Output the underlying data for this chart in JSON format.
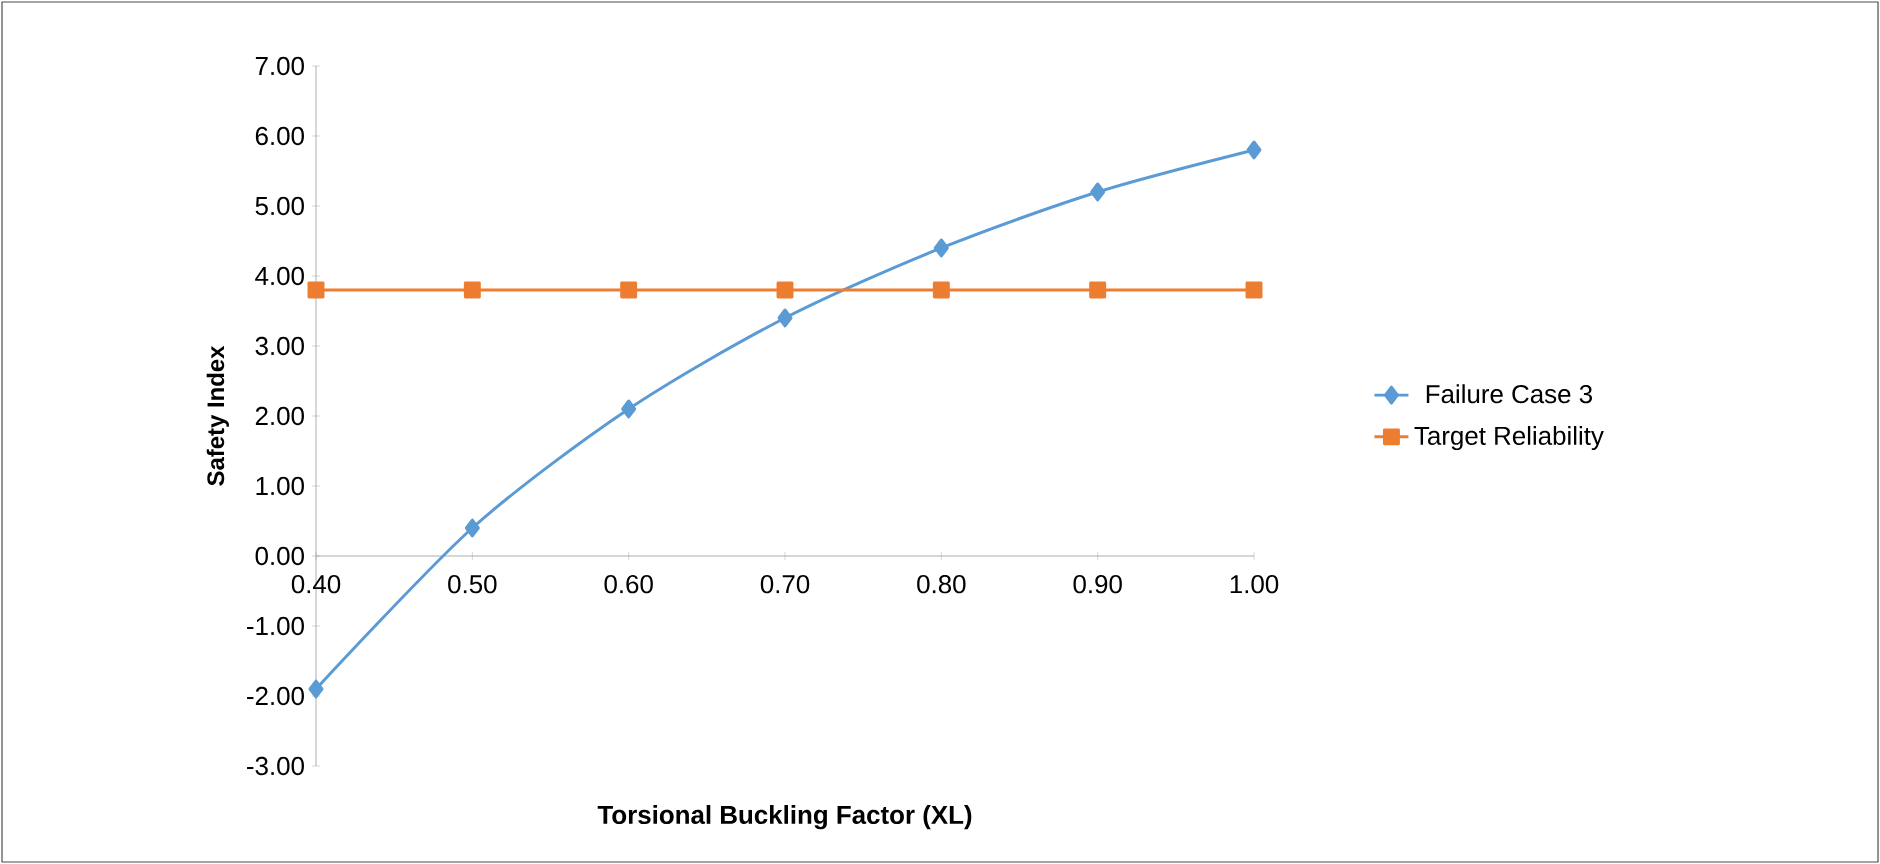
{
  "chart_data": {
    "type": "line",
    "xlabel": "Torsional  Buckling Factor (XL)",
    "ylabel": "Safety Index",
    "x": [
      0.4,
      0.5,
      0.6,
      0.7,
      0.8,
      0.9,
      1.0
    ],
    "series": [
      {
        "name": "Failure Case 3",
        "color": "#5b9bd5",
        "marker": "diamond",
        "values": [
          -1.9,
          0.4,
          2.1,
          3.4,
          4.4,
          5.2,
          5.8
        ]
      },
      {
        "name": "Target Reliability",
        "color": "#ed7d31",
        "marker": "square",
        "values": [
          3.8,
          3.8,
          3.8,
          3.8,
          3.8,
          3.8,
          3.8
        ]
      }
    ],
    "xlim": [
      0.4,
      1.0
    ],
    "ylim": [
      -3,
      7
    ],
    "xticks": [
      {
        "value": 0.4,
        "label": "0.40"
      },
      {
        "value": 0.5,
        "label": "0.50"
      },
      {
        "value": 0.6,
        "label": "0.60"
      },
      {
        "value": 0.7,
        "label": "0.70"
      },
      {
        "value": 0.8,
        "label": "0.80"
      },
      {
        "value": 0.9,
        "label": "0.90"
      },
      {
        "value": 1.0,
        "label": "1.00"
      }
    ],
    "yticks": [
      {
        "value": -3,
        "label": "-3.00"
      },
      {
        "value": -2,
        "label": "-2.00"
      },
      {
        "value": -1,
        "label": "-1.00"
      },
      {
        "value": 0,
        "label": "0.00"
      },
      {
        "value": 1,
        "label": "1.00"
      },
      {
        "value": 2,
        "label": "2.00"
      },
      {
        "value": 3,
        "label": "3.00"
      },
      {
        "value": 4,
        "label": "4.00"
      },
      {
        "value": 5,
        "label": "5.00"
      },
      {
        "value": 6,
        "label": "6.00"
      },
      {
        "value": 7,
        "label": "7.00"
      }
    ],
    "grid": false,
    "legend": "right",
    "line_style": "solid"
  }
}
